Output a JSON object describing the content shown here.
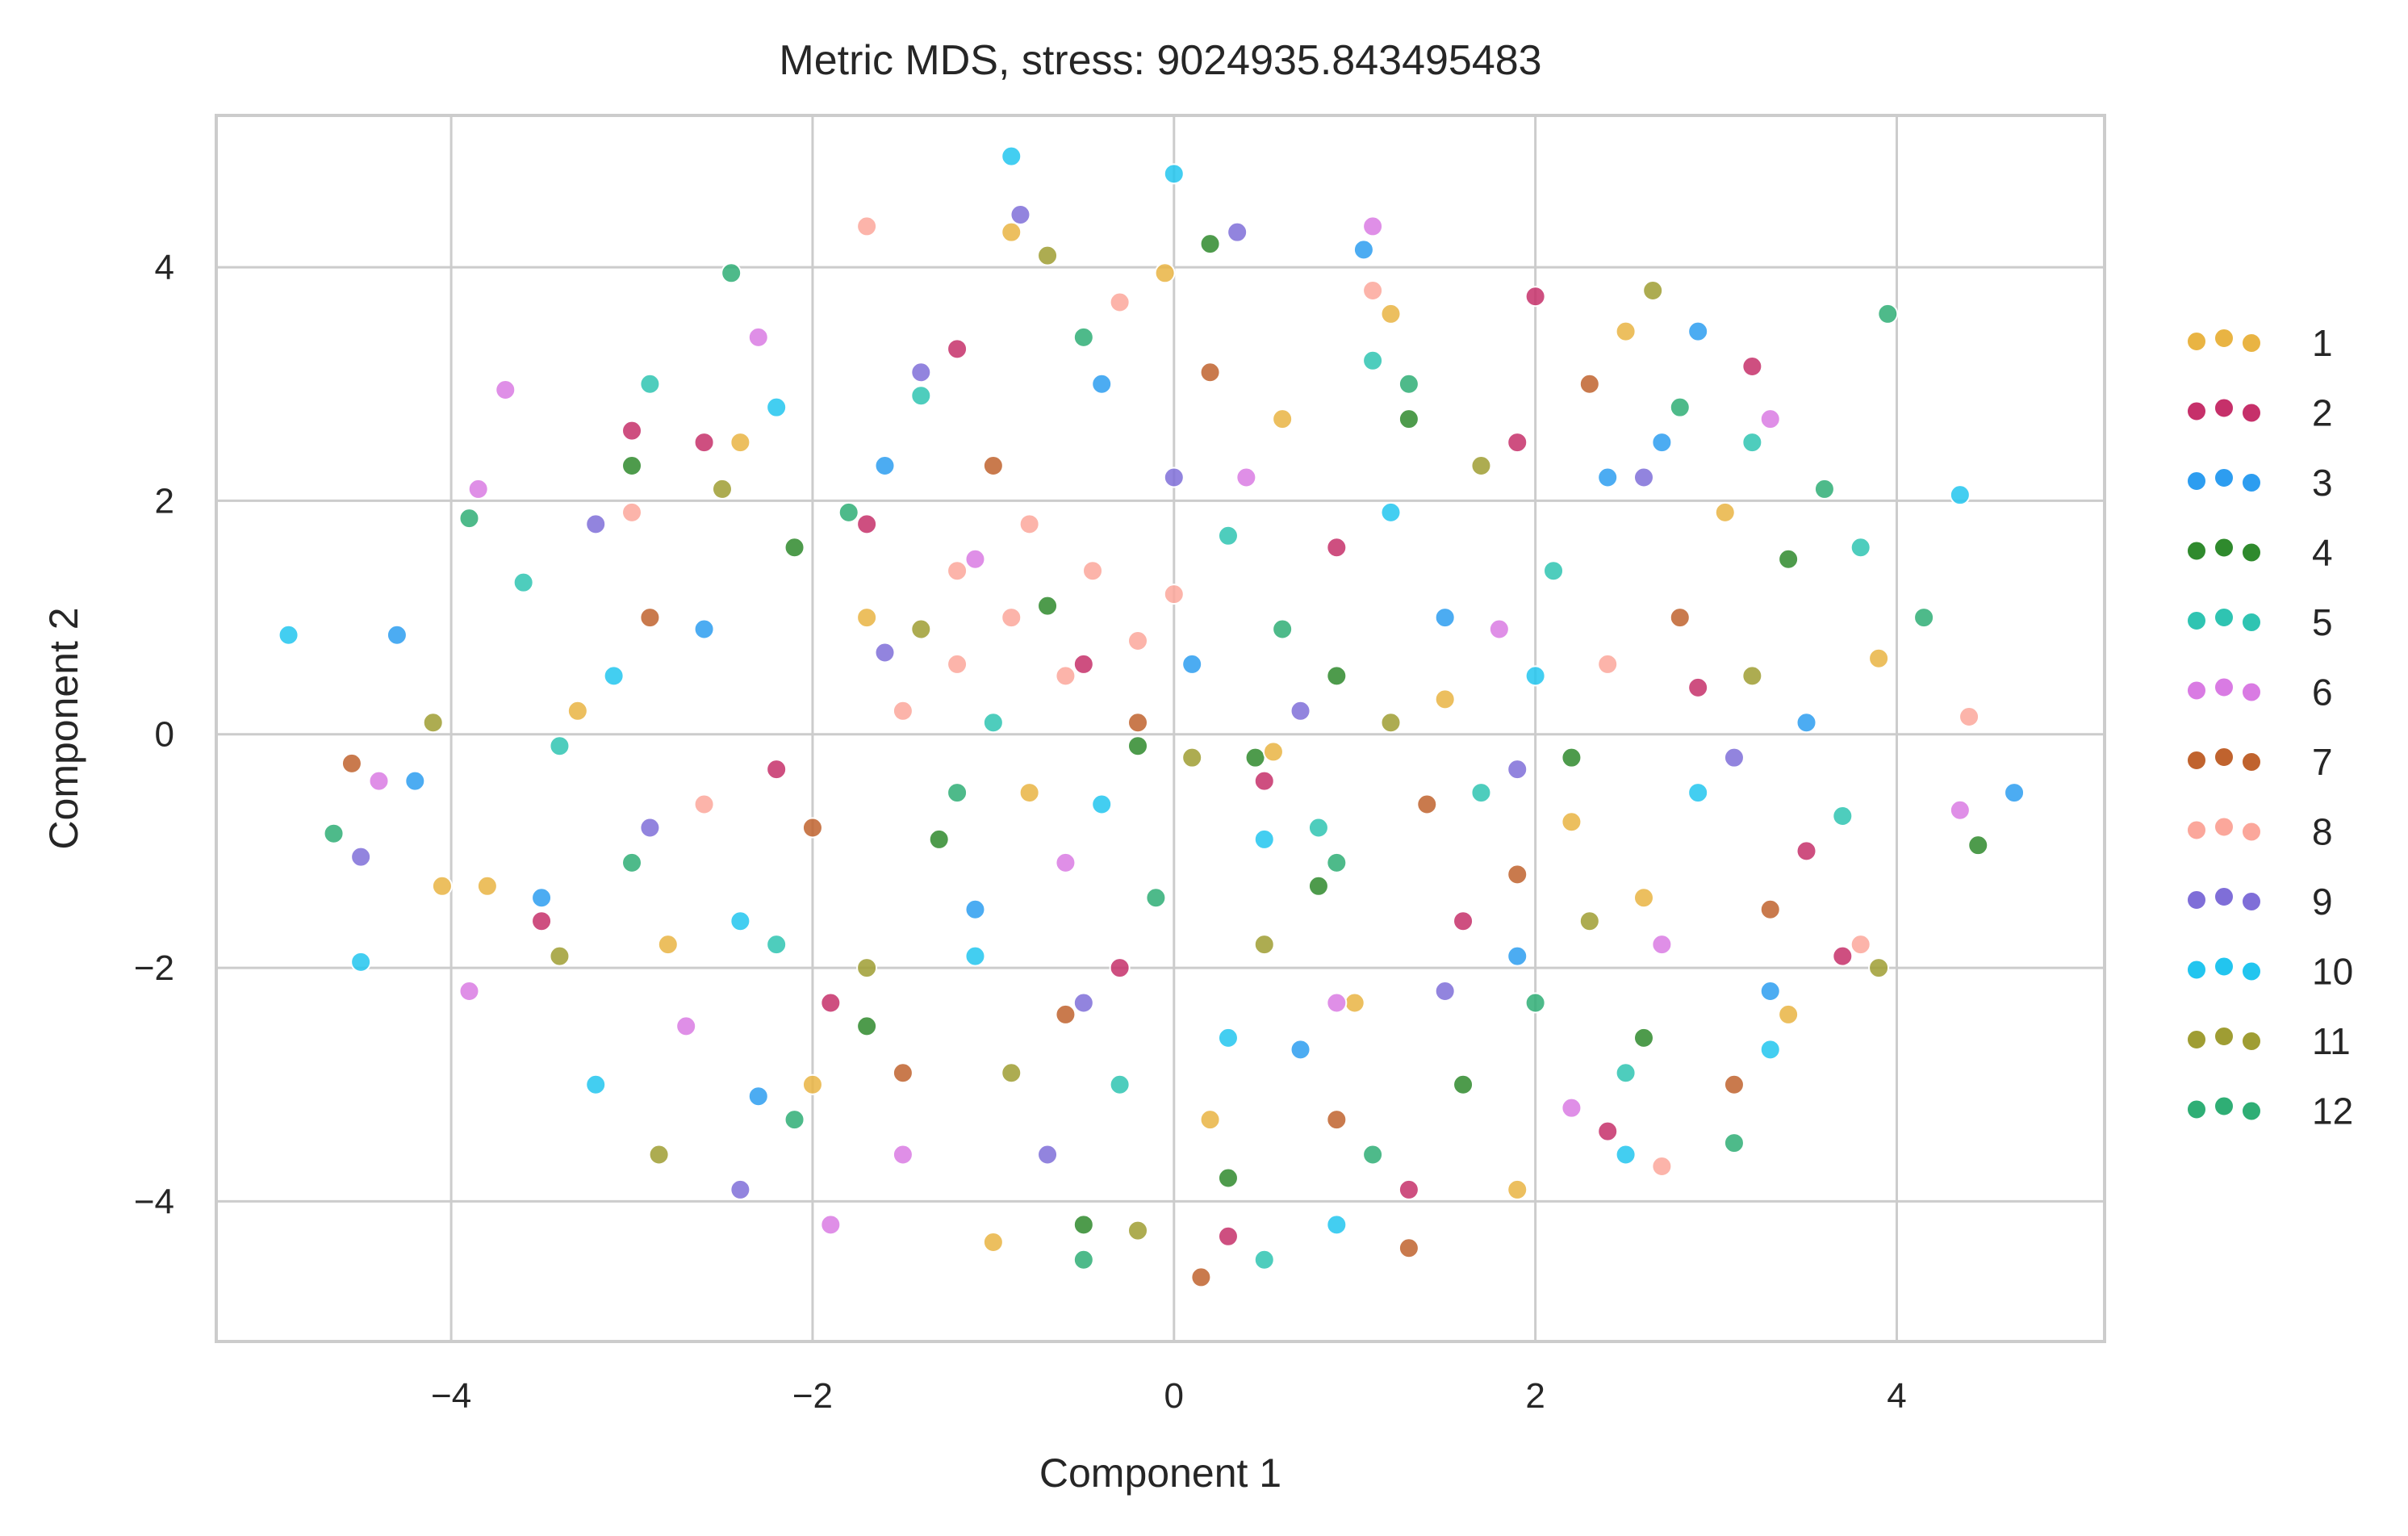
{
  "chart_data": {
    "type": "scatter",
    "title": "Metric MDS, stress: 9024935.843495483",
    "xlabel": "Component 1",
    "ylabel": "Component 2",
    "xlim": [
      -5.3,
      5.15
    ],
    "ylim": [
      -5.2,
      5.3
    ],
    "xticks": [
      -4,
      -2,
      0,
      2,
      4
    ],
    "yticks": [
      -4,
      -2,
      0,
      2,
      4
    ],
    "grid": true,
    "legend_position": "right",
    "marker_edge_color": "#ffffff",
    "marker_alpha": 0.85,
    "series": [
      {
        "name": "1",
        "color": "#e9b443",
        "points": [
          [
            -0.9,
            4.3
          ],
          [
            -0.05,
            3.95
          ],
          [
            2.5,
            3.45
          ],
          [
            3.05,
            1.9
          ],
          [
            3.9,
            0.65
          ],
          [
            2.2,
            -0.75
          ],
          [
            1.0,
            -2.3
          ],
          [
            -2.4,
            2.5
          ],
          [
            -3.3,
            0.2
          ],
          [
            -2.8,
            -1.8
          ],
          [
            -2.0,
            -3.0
          ],
          [
            0.2,
            -3.3
          ],
          [
            1.9,
            -3.9
          ],
          [
            3.4,
            -2.4
          ],
          [
            -1.7,
            1.0
          ],
          [
            0.6,
            2.7
          ],
          [
            1.5,
            0.3
          ],
          [
            -0.8,
            -0.5
          ],
          [
            2.6,
            -1.4
          ],
          [
            -3.8,
            -1.3
          ],
          [
            -4.05,
            -1.3
          ],
          [
            -1.0,
            -4.35
          ],
          [
            0.55,
            -0.15
          ],
          [
            1.2,
            3.6
          ]
        ]
      },
      {
        "name": "2",
        "color": "#c6306a",
        "points": [
          [
            2.0,
            3.75
          ],
          [
            3.2,
            3.15
          ],
          [
            -2.6,
            2.5
          ],
          [
            -1.7,
            1.8
          ],
          [
            0.5,
            -0.4
          ],
          [
            1.6,
            -1.6
          ],
          [
            -3.5,
            -1.6
          ],
          [
            2.4,
            -3.4
          ],
          [
            -0.3,
            -2.0
          ],
          [
            0.9,
            1.6
          ],
          [
            -2.2,
            -0.3
          ],
          [
            3.7,
            -1.9
          ],
          [
            -1.2,
            3.3
          ],
          [
            1.3,
            -3.9
          ],
          [
            2.9,
            0.4
          ],
          [
            -0.5,
            0.6
          ],
          [
            0.3,
            -4.3
          ],
          [
            -3.0,
            2.6
          ],
          [
            1.9,
            2.5
          ],
          [
            -1.9,
            -2.3
          ],
          [
            3.5,
            -1.0
          ]
        ]
      },
      {
        "name": "3",
        "color": "#2d9df0",
        "points": [
          [
            1.05,
            4.15
          ],
          [
            -4.2,
            -0.4
          ],
          [
            -4.3,
            0.85
          ],
          [
            4.65,
            -0.5
          ],
          [
            2.9,
            3.45
          ],
          [
            -3.5,
            -1.4
          ],
          [
            1.5,
            1.0
          ],
          [
            -1.1,
            -1.5
          ],
          [
            0.7,
            -2.7
          ],
          [
            2.4,
            2.2
          ],
          [
            -2.6,
            0.9
          ],
          [
            3.5,
            0.1
          ],
          [
            -0.4,
            3.0
          ],
          [
            1.9,
            -1.9
          ],
          [
            -2.3,
            -3.1
          ],
          [
            0.1,
            0.6
          ],
          [
            2.7,
            2.5
          ],
          [
            -1.6,
            2.3
          ],
          [
            3.3,
            -2.2
          ]
        ]
      },
      {
        "name": "4",
        "color": "#2f8a2d",
        "points": [
          [
            0.45,
            -0.2
          ],
          [
            -0.2,
            -0.1
          ],
          [
            0.9,
            0.5
          ],
          [
            2.2,
            -0.2
          ],
          [
            -1.3,
            -0.9
          ],
          [
            0.3,
            -3.8
          ],
          [
            -0.5,
            -4.2
          ],
          [
            0.2,
            4.2
          ],
          [
            -3.0,
            2.3
          ],
          [
            2.6,
            -2.6
          ],
          [
            1.3,
            2.7
          ],
          [
            4.45,
            -0.95
          ],
          [
            -2.1,
            1.6
          ],
          [
            -1.7,
            -2.5
          ],
          [
            3.4,
            1.5
          ],
          [
            0.8,
            -1.3
          ],
          [
            -0.7,
            1.1
          ],
          [
            1.6,
            -3.0
          ]
        ]
      },
      {
        "name": "5",
        "color": "#2fc4b2",
        "points": [
          [
            -2.9,
            3.0
          ],
          [
            0.8,
            -0.8
          ],
          [
            1.7,
            -0.5
          ],
          [
            -1.4,
            2.9
          ],
          [
            3.2,
            2.5
          ],
          [
            3.7,
            -0.7
          ],
          [
            -3.4,
            -0.1
          ],
          [
            -0.3,
            -3.0
          ],
          [
            1.1,
            3.2
          ],
          [
            -2.2,
            -1.8
          ],
          [
            2.1,
            1.4
          ],
          [
            0.3,
            1.7
          ],
          [
            -1.0,
            0.1
          ],
          [
            2.5,
            -2.9
          ],
          [
            -3.6,
            1.3
          ],
          [
            0.5,
            -4.5
          ],
          [
            3.8,
            1.6
          ]
        ]
      },
      {
        "name": "6",
        "color": "#d97be3",
        "points": [
          [
            -3.7,
            2.95
          ],
          [
            -3.85,
            2.1
          ],
          [
            -3.9,
            -2.2
          ],
          [
            1.1,
            4.35
          ],
          [
            4.35,
            -0.65
          ],
          [
            -2.7,
            -2.5
          ],
          [
            0.4,
            2.2
          ],
          [
            -1.5,
            -3.6
          ],
          [
            2.7,
            -1.8
          ],
          [
            -0.6,
            -1.1
          ],
          [
            1.8,
            0.9
          ],
          [
            3.3,
            2.7
          ],
          [
            -2.3,
            3.4
          ],
          [
            0.9,
            -2.3
          ],
          [
            -1.1,
            1.5
          ],
          [
            2.2,
            -3.2
          ],
          [
            -4.4,
            -0.4
          ],
          [
            -1.9,
            -4.2
          ]
        ]
      },
      {
        "name": "7",
        "color": "#c0632e",
        "points": [
          [
            -4.55,
            -0.25
          ],
          [
            0.15,
            -4.65
          ],
          [
            1.3,
            -4.4
          ],
          [
            3.1,
            -3.0
          ],
          [
            -0.2,
            0.1
          ],
          [
            1.4,
            -0.6
          ],
          [
            -2.0,
            -0.8
          ],
          [
            0.9,
            -3.3
          ],
          [
            -1.0,
            2.3
          ],
          [
            2.8,
            1.0
          ],
          [
            -2.9,
            1.0
          ],
          [
            0.2,
            3.1
          ],
          [
            3.3,
            -1.5
          ],
          [
            -1.5,
            -2.9
          ],
          [
            1.9,
            -1.2
          ],
          [
            -0.6,
            -2.4
          ],
          [
            2.3,
            3.0
          ]
        ]
      },
      {
        "name": "8",
        "color": "#fba79b",
        "points": [
          [
            -0.45,
            1.4
          ],
          [
            -0.9,
            1.0
          ],
          [
            -0.6,
            0.5
          ],
          [
            -0.2,
            0.8
          ],
          [
            -1.2,
            1.4
          ],
          [
            -0.3,
            3.7
          ],
          [
            -1.7,
            4.35
          ],
          [
            2.7,
            -3.7
          ],
          [
            4.4,
            0.15
          ],
          [
            -1.2,
            0.6
          ],
          [
            -0.8,
            1.8
          ],
          [
            0.0,
            1.2
          ],
          [
            -1.5,
            0.2
          ],
          [
            1.1,
            3.8
          ],
          [
            -2.6,
            -0.6
          ],
          [
            2.4,
            0.6
          ],
          [
            -3.0,
            1.9
          ],
          [
            3.8,
            -1.8
          ]
        ]
      },
      {
        "name": "9",
        "color": "#7f6ed8",
        "points": [
          [
            -0.85,
            4.45
          ],
          [
            -4.5,
            -1.05
          ],
          [
            0.35,
            4.3
          ],
          [
            -2.4,
            -3.9
          ],
          [
            -0.5,
            -2.3
          ],
          [
            1.9,
            -0.3
          ],
          [
            -1.6,
            0.7
          ],
          [
            2.6,
            2.2
          ],
          [
            0.0,
            2.2
          ],
          [
            -2.9,
            -0.8
          ],
          [
            3.1,
            -0.2
          ],
          [
            0.7,
            0.2
          ],
          [
            -0.7,
            -3.6
          ],
          [
            1.5,
            -2.2
          ],
          [
            -1.4,
            3.1
          ],
          [
            -3.2,
            1.8
          ]
        ]
      },
      {
        "name": "10",
        "color": "#22c5ef",
        "points": [
          [
            -4.9,
            0.85
          ],
          [
            -4.5,
            -1.95
          ],
          [
            -0.9,
            4.95
          ],
          [
            0.0,
            4.8
          ],
          [
            4.35,
            2.05
          ],
          [
            -3.2,
            -3.0
          ],
          [
            0.9,
            -4.2
          ],
          [
            0.5,
            -0.9
          ],
          [
            -1.1,
            -1.9
          ],
          [
            2.0,
            0.5
          ],
          [
            -2.2,
            2.8
          ],
          [
            3.3,
            -2.7
          ],
          [
            1.2,
            1.9
          ],
          [
            -0.4,
            -0.6
          ],
          [
            2.9,
            -0.5
          ],
          [
            -2.4,
            -1.6
          ],
          [
            0.3,
            -2.6
          ],
          [
            2.5,
            -3.6
          ],
          [
            -3.1,
            0.5
          ]
        ]
      },
      {
        "name": "11",
        "color": "#9f9d33",
        "points": [
          [
            -2.85,
            -3.6
          ],
          [
            -0.2,
            -4.25
          ],
          [
            2.65,
            3.8
          ],
          [
            -0.7,
            4.1
          ],
          [
            -4.1,
            0.1
          ],
          [
            3.9,
            -2.0
          ],
          [
            1.2,
            0.1
          ],
          [
            -1.7,
            -2.0
          ],
          [
            0.1,
            -0.2
          ],
          [
            -2.5,
            2.1
          ],
          [
            2.3,
            -1.6
          ],
          [
            -0.9,
            -2.9
          ],
          [
            1.7,
            2.3
          ],
          [
            -3.4,
            -1.9
          ],
          [
            3.2,
            0.5
          ],
          [
            0.5,
            -1.8
          ],
          [
            -1.4,
            0.9
          ]
        ]
      },
      {
        "name": "12",
        "color": "#2fae75",
        "points": [
          [
            3.95,
            3.6
          ],
          [
            -3.9,
            1.85
          ],
          [
            -4.65,
            -0.85
          ],
          [
            4.15,
            1.0
          ],
          [
            -2.45,
            3.95
          ],
          [
            1.3,
            3.0
          ],
          [
            -0.1,
            -1.4
          ],
          [
            2.0,
            -2.3
          ],
          [
            -1.8,
            1.9
          ],
          [
            0.6,
            0.9
          ],
          [
            -3.0,
            -1.1
          ],
          [
            3.6,
            2.1
          ],
          [
            -0.5,
            3.4
          ],
          [
            1.1,
            -3.6
          ],
          [
            -2.1,
            -3.3
          ],
          [
            2.8,
            2.8
          ],
          [
            -1.2,
            -0.5
          ],
          [
            0.9,
            -1.1
          ],
          [
            3.1,
            -3.5
          ],
          [
            -0.5,
            -4.5
          ]
        ]
      }
    ]
  }
}
